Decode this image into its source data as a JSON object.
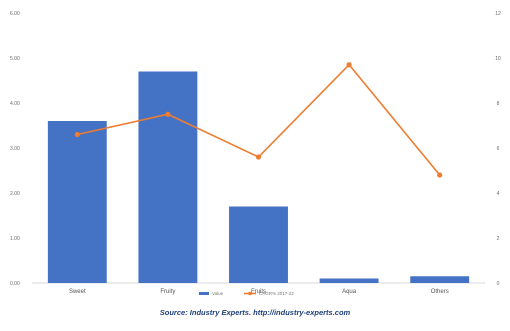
{
  "chart_data": {
    "type": "bar",
    "title": "",
    "categories": [
      "Sweet",
      "Fruity",
      "Fruits",
      "Aqua",
      "Others"
    ],
    "series": [
      {
        "name": "Value",
        "type": "bar",
        "axis": "left",
        "color": "#4472c4",
        "values": [
          3.6,
          4.7,
          1.7,
          0.1,
          0.15
        ]
      },
      {
        "name": "CAGR% 2017-22",
        "type": "line",
        "axis": "right",
        "color": "#ed7d31",
        "values": [
          6.6,
          7.5,
          5.6,
          9.7,
          4.8
        ]
      }
    ],
    "y_left": {
      "ylim": [
        0,
        6
      ],
      "ticks": [
        "0.00",
        "1.00",
        "2.00",
        "3.00",
        "4.00",
        "5.00",
        "6.00"
      ]
    },
    "y_right": {
      "ylim": [
        0,
        12
      ],
      "ticks": [
        "0",
        "2",
        "4",
        "6",
        "8",
        "10",
        "12"
      ]
    },
    "legend": {
      "placement": "bottom"
    },
    "grid": false
  },
  "source": "Source: Industry Experts. http://industry-experts.com"
}
